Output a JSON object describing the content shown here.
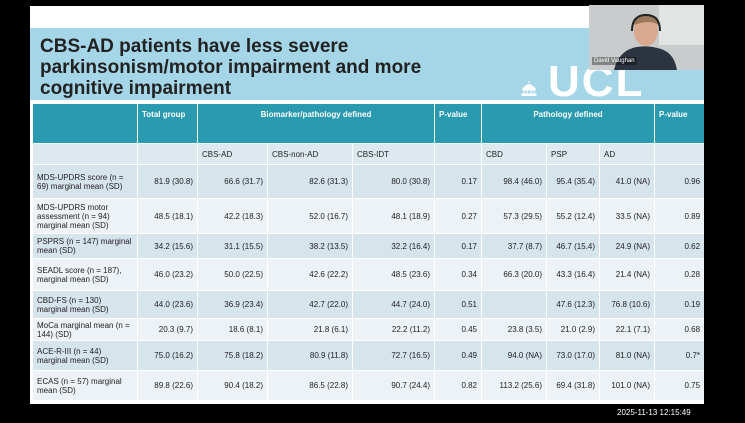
{
  "slide": {
    "title": "CBS-AD patients have less severe parkinsonism/motor impairment and more cognitive impairment",
    "logo": "UCL"
  },
  "table": {
    "header": [
      "Total group",
      "Biomarker/pathology defined",
      "P-value",
      "Pathology defined",
      "P-value"
    ],
    "subheader": [
      "CBS-AD",
      "CBS-non-AD",
      "CBS-IDT",
      "CBD",
      "PSP",
      "AD"
    ],
    "rows": [
      [
        "MDS-UPDRS score (n = 69) marginal mean (SD)",
        "81.9 (30.8)",
        "66.6 (31.7)",
        "82.6 (31.3)",
        "80.0 (30.8)",
        "0.17",
        "98.4 (46.0)",
        "95.4 (35.4)",
        "41.0 (NA)",
        "0.96"
      ],
      [
        "MDS-UPDRS motor assessment (n = 94) marginal mean (SD)",
        "48.5 (18.1)",
        "42.2 (18.3)",
        "52.0 (16.7)",
        "48.1 (18.9)",
        "0.27",
        "57.3 (29.5)",
        "55.2 (12.4)",
        "33.5 (NA)",
        "0.89"
      ],
      [
        "PSPRS (n = 147) marginal mean (SD)",
        "34.2 (15.6)",
        "31.1 (15.5)",
        "38.2 (13.5)",
        "32.2 (16.4)",
        "0.17",
        "37.7 (8.7)",
        "46.7 (15.4)",
        "24.9 (NA)",
        "0.62"
      ],
      [
        "SEADL score (n = 187), marginal mean (SD)",
        "46.0 (23.2)",
        "50.0 (22.5)",
        "42.6 (22.2)",
        "48.5 (23.6)",
        "0.34",
        "66.3 (20.0)",
        "43.3 (16.4)",
        "21.4 (NA)",
        "0.28"
      ],
      [
        "CBD-FS (n = 130) marginal mean (SD)",
        "44.0 (23.6)",
        "36.9 (23.4)",
        "42.7 (22.0)",
        "44.7 (24.0)",
        "0.51",
        null,
        "47.6 (12.3)",
        "76.8 (10.6)",
        "0.19"
      ],
      [
        "MoCa marginal mean (n = 144) (SD)",
        "20.3 (9.7)",
        "18.6 (8.1)",
        "21.8 (6.1)",
        "22.2 (11.2)",
        "0.45",
        "23.8 (3.5)",
        "21.0 (2.9)",
        "22.1 (7.1)",
        "0.68"
      ],
      [
        "ACE-R-III (n = 44) marginal mean (SD)",
        "75.0 (16.2)",
        "75.8 (18.2)",
        "80.9 (11.8)",
        "72.7 (16.5)",
        "0.49",
        "94.0 (NA)",
        "73.0 (17.0)",
        "81.0 (NA)",
        "0.7*"
      ],
      [
        "ECAS (n = 57) marginal mean (SD)",
        "89.8 (22.6)",
        "90.4 (18.2)",
        "86.5 (22.8)",
        "90.7 (24.4)",
        "0.82",
        "113.2 (25.6)",
        "69.4 (31.8)",
        "101.0 (NA)",
        "0.75"
      ]
    ]
  },
  "video": {
    "name": "David Vaughan"
  },
  "timestamp": "2025-11-13  12:15:49"
}
